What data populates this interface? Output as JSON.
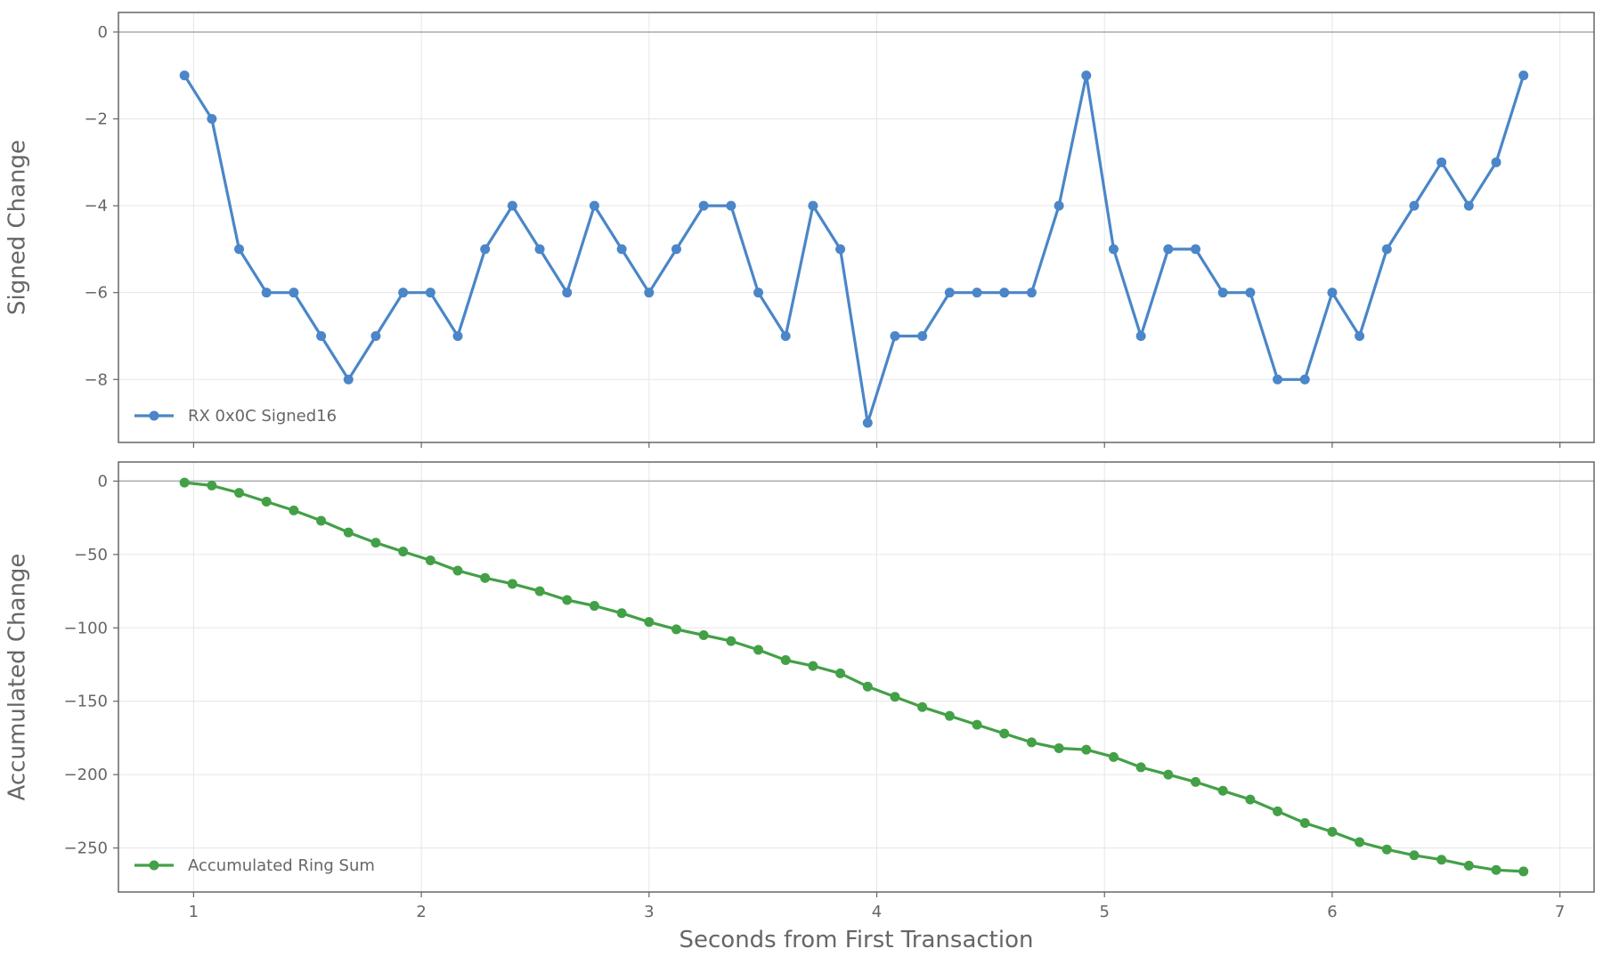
{
  "chart_data": [
    {
      "type": "line",
      "ylabel": "Signed Change",
      "xlim": [
        0.67,
        7.15
      ],
      "ylim": [
        -9.45,
        0.45
      ],
      "yticks": [
        0,
        -2,
        -4,
        -6,
        -8
      ],
      "ytick_labels": [
        "0",
        "−2",
        "−4",
        "−6",
        "−8"
      ],
      "xticks": [
        1,
        2,
        3,
        4,
        5,
        6,
        7
      ],
      "grid": true,
      "zero_line": true,
      "legend_position": "lower-left",
      "series": [
        {
          "name": "RX 0x0C Signed16",
          "color": "#4a86c8",
          "x": [
            0.96,
            1.08,
            1.2,
            1.32,
            1.44,
            1.56,
            1.68,
            1.8,
            1.92,
            2.04,
            2.16,
            2.28,
            2.4,
            2.52,
            2.64,
            2.76,
            2.88,
            3.0,
            3.12,
            3.24,
            3.36,
            3.48,
            3.6,
            3.72,
            3.84,
            3.96,
            4.08,
            4.2,
            4.32,
            4.44,
            4.56,
            4.68,
            4.8,
            4.92,
            5.04,
            5.16,
            5.28,
            5.4,
            5.52,
            5.64,
            5.76,
            5.88,
            6.0,
            6.12,
            6.24,
            6.36,
            6.48,
            6.6,
            6.72,
            6.84
          ],
          "values": [
            -1,
            -2,
            -5,
            -6,
            -6,
            -7,
            -8,
            -7,
            -6,
            -6,
            -7,
            -5,
            -4,
            -5,
            -6,
            -4,
            -5,
            -6,
            -5,
            -4,
            -4,
            -6,
            -7,
            -4,
            -5,
            -9,
            -7,
            -7,
            -6,
            -6,
            -6,
            -6,
            -4,
            -1,
            -5,
            -7,
            -5,
            -5,
            -6,
            -6,
            -8,
            -8,
            -6,
            -7,
            -5,
            -4,
            -3,
            -4,
            -3,
            -1
          ]
        }
      ]
    },
    {
      "type": "line",
      "ylabel": "Accumulated Change",
      "xlabel": "Seconds from First Transaction",
      "xlim": [
        0.67,
        7.15
      ],
      "ylim": [
        -280,
        13
      ],
      "yticks": [
        0,
        -50,
        -100,
        -150,
        -200,
        -250
      ],
      "ytick_labels": [
        "0",
        "−50",
        "−100",
        "−150",
        "−200",
        "−250"
      ],
      "xticks": [
        1,
        2,
        3,
        4,
        5,
        6,
        7
      ],
      "xtick_labels": [
        "1",
        "2",
        "3",
        "4",
        "5",
        "6",
        "7"
      ],
      "grid": true,
      "zero_line": true,
      "legend_position": "lower-left",
      "series": [
        {
          "name": "Accumulated Ring Sum",
          "color": "#43a047",
          "x": [
            0.96,
            1.08,
            1.2,
            1.32,
            1.44,
            1.56,
            1.68,
            1.8,
            1.92,
            2.04,
            2.16,
            2.28,
            2.4,
            2.52,
            2.64,
            2.76,
            2.88,
            3.0,
            3.12,
            3.24,
            3.36,
            3.48,
            3.6,
            3.72,
            3.84,
            3.96,
            4.08,
            4.2,
            4.32,
            4.44,
            4.56,
            4.68,
            4.8,
            4.92,
            5.04,
            5.16,
            5.28,
            5.4,
            5.52,
            5.64,
            5.76,
            5.88,
            6.0,
            6.12,
            6.24,
            6.36,
            6.48,
            6.6,
            6.72,
            6.84
          ],
          "values": [
            -1,
            -3,
            -8,
            -14,
            -20,
            -27,
            -35,
            -42,
            -48,
            -54,
            -61,
            -66,
            -70,
            -75,
            -81,
            -85,
            -90,
            -96,
            -101,
            -105,
            -109,
            -115,
            -122,
            -126,
            -131,
            -140,
            -147,
            -154,
            -160,
            -166,
            -172,
            -178,
            -182,
            -183,
            -188,
            -195,
            -200,
            -205,
            -211,
            -217,
            -225,
            -233,
            -239,
            -246,
            -251,
            -255,
            -258,
            -262,
            -265,
            -266
          ]
        }
      ]
    }
  ]
}
